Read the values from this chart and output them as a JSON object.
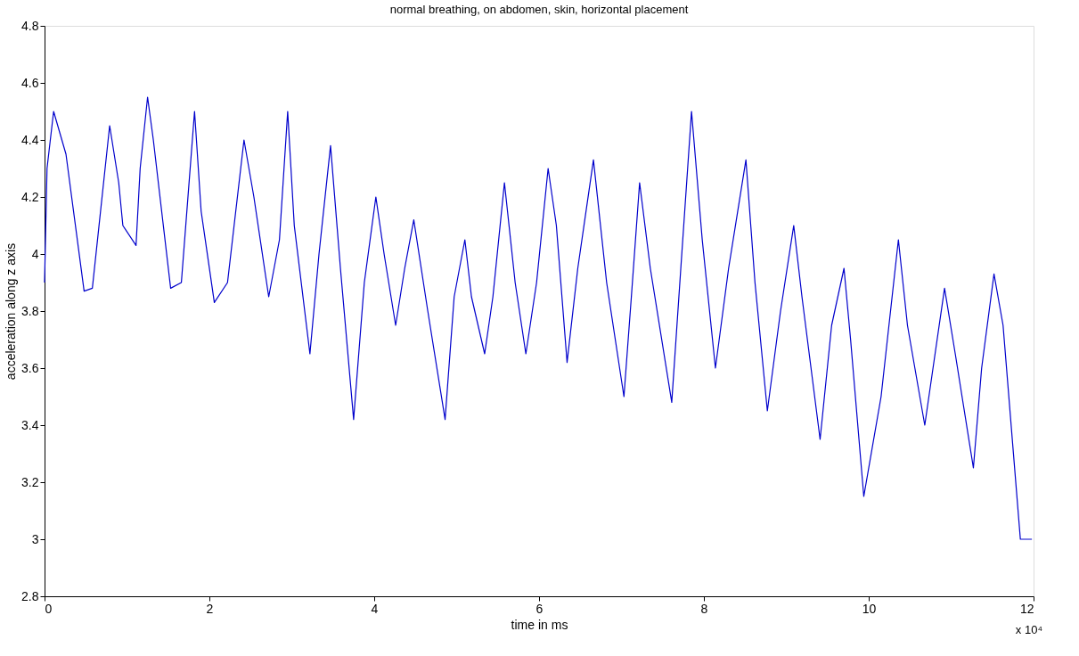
{
  "chart_data": {
    "type": "line",
    "title": "normal breathing, on abdomen, skin, horizontal placement",
    "xlabel": "time in ms",
    "ylabel": "acceleration along z axis",
    "annotations": [
      "x 10⁴"
    ],
    "xlim": [
      0,
      12
    ],
    "xticks": [
      0,
      2,
      4,
      6,
      8,
      10,
      12
    ],
    "ylim": [
      2.8,
      4.8
    ],
    "yticks": [
      2.8,
      3,
      3.2,
      3.4,
      3.6,
      3.8,
      4,
      4.2,
      4.4,
      4.6,
      4.8
    ],
    "grid": false,
    "legend": false,
    "marker": "none",
    "line_style": "solid",
    "x": [
      0.0,
      0.03,
      0.11,
      0.16,
      0.26,
      0.48,
      0.58,
      0.79,
      0.9,
      0.95,
      1.11,
      1.16,
      1.25,
      1.32,
      1.53,
      1.66,
      1.82,
      1.9,
      2.06,
      2.22,
      2.42,
      2.54,
      2.72,
      2.85,
      2.95,
      3.03,
      3.22,
      3.33,
      3.47,
      3.59,
      3.75,
      3.88,
      4.02,
      4.12,
      4.26,
      4.37,
      4.48,
      4.65,
      4.86,
      4.97,
      5.1,
      5.18,
      5.34,
      5.44,
      5.58,
      5.71,
      5.84,
      5.97,
      6.11,
      6.21,
      6.34,
      6.47,
      6.66,
      6.82,
      7.03,
      7.12,
      7.22,
      7.35,
      7.61,
      7.72,
      7.85,
      7.98,
      8.14,
      8.3,
      8.51,
      8.62,
      8.77,
      8.93,
      9.09,
      9.19,
      9.41,
      9.55,
      9.7,
      9.78,
      9.94,
      10.15,
      10.36,
      10.47,
      10.68,
      10.78,
      10.92,
      11.05,
      11.27,
      11.37,
      11.52,
      11.63,
      11.84,
      11.98
    ],
    "series": [
      {
        "color": "#0000cc",
        "values": [
          3.9,
          4.3,
          4.5,
          4.45,
          4.35,
          3.87,
          3.88,
          4.45,
          4.25,
          4.1,
          4.03,
          4.3,
          4.55,
          4.4,
          3.88,
          3.9,
          4.5,
          4.15,
          3.83,
          3.9,
          4.4,
          4.2,
          3.85,
          4.05,
          4.5,
          4.1,
          3.65,
          4.0,
          4.38,
          3.95,
          3.42,
          3.9,
          4.2,
          4.0,
          3.75,
          3.95,
          4.12,
          3.8,
          3.42,
          3.85,
          4.05,
          3.85,
          3.65,
          3.85,
          4.25,
          3.9,
          3.65,
          3.9,
          4.3,
          4.1,
          3.62,
          3.95,
          4.33,
          3.9,
          3.5,
          3.85,
          4.25,
          3.95,
          3.48,
          3.95,
          4.5,
          4.05,
          3.6,
          3.95,
          4.33,
          3.9,
          3.45,
          3.8,
          4.1,
          3.85,
          3.35,
          3.75,
          3.95,
          3.7,
          3.15,
          3.5,
          4.05,
          3.75,
          3.4,
          3.6,
          3.88,
          3.65,
          3.25,
          3.6,
          3.93,
          3.75,
          3.0,
          3.0
        ]
      }
    ]
  }
}
